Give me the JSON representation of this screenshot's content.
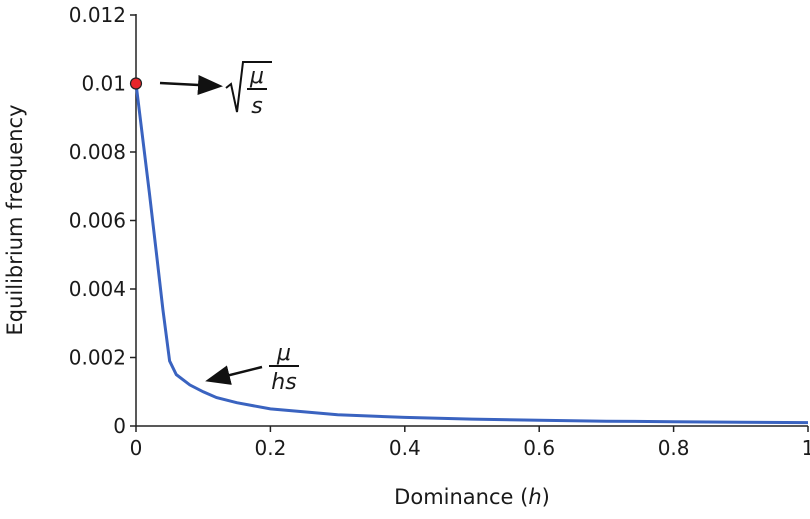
{
  "chart_data": {
    "type": "line",
    "title": "",
    "xlabel": "Dominance (h)",
    "xlabel_main": "Dominance (",
    "xlabel_var": "h",
    "xlabel_close": ")",
    "ylabel": "Equilibrium frequency",
    "xlim": [
      0,
      1
    ],
    "ylim": [
      0,
      0.012
    ],
    "x_ticks": [
      "0",
      "0.2",
      "0.4",
      "0.6",
      "0.8",
      "1"
    ],
    "y_ticks": [
      "0",
      "0.002",
      "0.004",
      "0.006",
      "0.008",
      "0.01",
      "0.012"
    ],
    "grid": false,
    "series": [
      {
        "color": "#3a63c0",
        "x": [
          0,
          0.01,
          0.02,
          0.03,
          0.04,
          0.05,
          0.06,
          0.08,
          0.1,
          0.12,
          0.15,
          0.2,
          0.3,
          0.4,
          0.5,
          0.6,
          0.7,
          0.8,
          0.9,
          1.0
        ],
        "y": [
          0.01,
          0.0084,
          0.0068,
          0.0051,
          0.0034,
          0.0019,
          0.0015,
          0.0012,
          0.001,
          0.00083,
          0.00068,
          0.0005,
          0.00033,
          0.00025,
          0.0002,
          0.00017,
          0.00014,
          0.000125,
          0.00011,
          0.0001
        ]
      }
    ],
    "highlight_point": {
      "x": 0,
      "y": 0.01,
      "color": "#e8262a"
    },
    "annotations": [
      {
        "label": "sqrt(μ/s)",
        "numerator": "μ",
        "denominator": "s",
        "sqrt": true,
        "points_to": {
          "x": 0,
          "y": 0.01
        }
      },
      {
        "label": "μ/hs",
        "numerator": "μ",
        "denominator": "hs",
        "sqrt": false,
        "points_to": {
          "x": 0.1,
          "y": 0.00095
        }
      }
    ]
  }
}
